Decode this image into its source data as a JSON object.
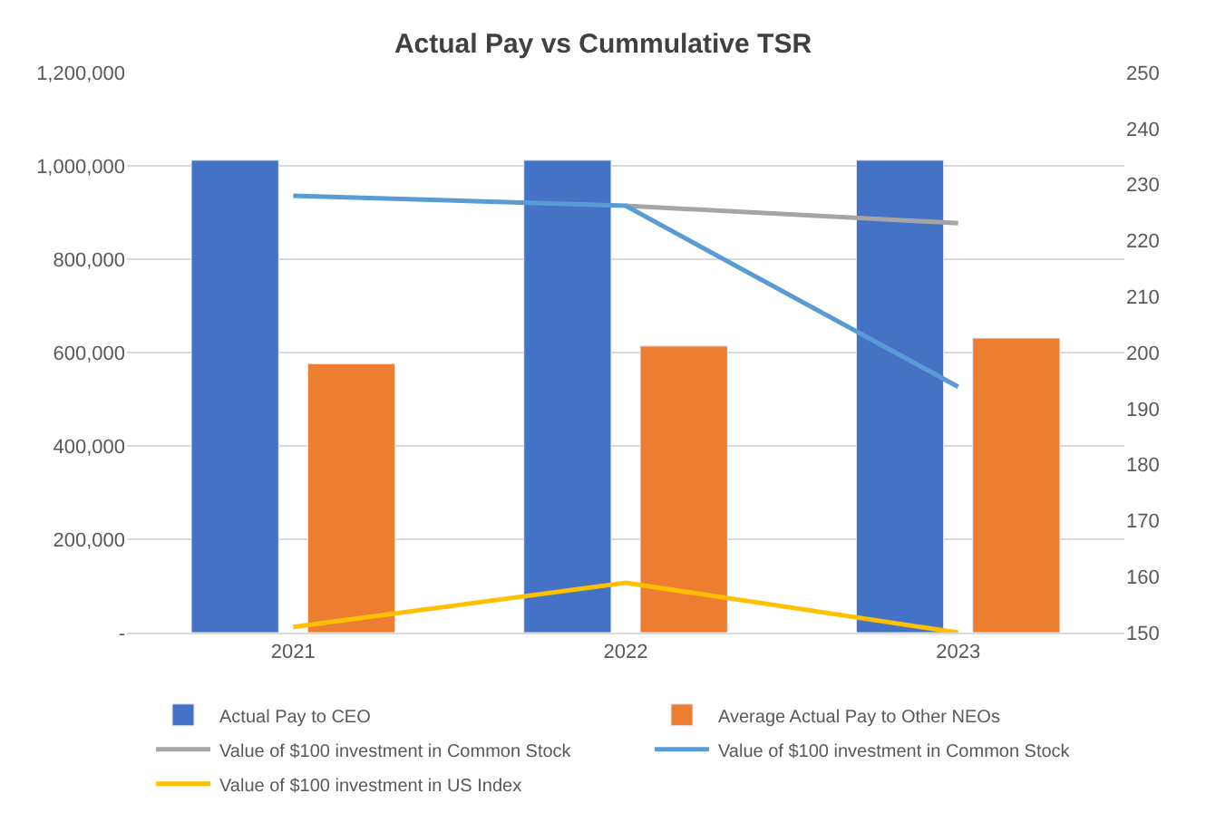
{
  "chart_data": {
    "type": "bar",
    "title": "Actual Pay vs Cummulative TSR",
    "categories": [
      "2021",
      "2022",
      "2023"
    ],
    "series": [
      {
        "name": "Actual Pay to CEO",
        "color": "#4472c4",
        "values": [
          1012000,
          1012000,
          1012000
        ]
      },
      {
        "name": "Average Actual Pay to Other NEOs",
        "color": "#ed7d31",
        "values": [
          576000,
          614000,
          631000
        ]
      },
      {
        "name": "Value of $100 investment in Common Stock",
        "type": "line",
        "axis": "y2",
        "color": "#a5a5a5",
        "values": [
          null,
          226.2,
          223.1
        ]
      },
      {
        "name": "Value of $100 investment in Common Stock",
        "type": "line",
        "axis": "y2",
        "color": "#5b9bd5",
        "values": [
          228,
          226.2,
          193.9
        ]
      },
      {
        "name": "Value of $100 investment in US Index",
        "type": "line",
        "axis": "y2",
        "color": "#ffc000",
        "values": [
          151,
          158.9,
          150
        ]
      }
    ],
    "ylim": [
      0,
      1200000
    ],
    "yticks": [
      {
        "value": 0,
        "label": "-"
      },
      {
        "value": 200000,
        "label": "200,000"
      },
      {
        "value": 400000,
        "label": "400,000"
      },
      {
        "value": 600000,
        "label": "600,000"
      },
      {
        "value": 800000,
        "label": "800,000"
      },
      {
        "value": 1000000,
        "label": "1,000,000"
      },
      {
        "value": 1200000,
        "label": "1,200,000"
      }
    ],
    "y2lim": [
      150,
      250
    ],
    "y2ticks": [
      150,
      160,
      170,
      180,
      190,
      200,
      210,
      220,
      230,
      240,
      250
    ],
    "grid": "y",
    "legend": "bottom",
    "marker": "none",
    "line_style": "solid"
  }
}
